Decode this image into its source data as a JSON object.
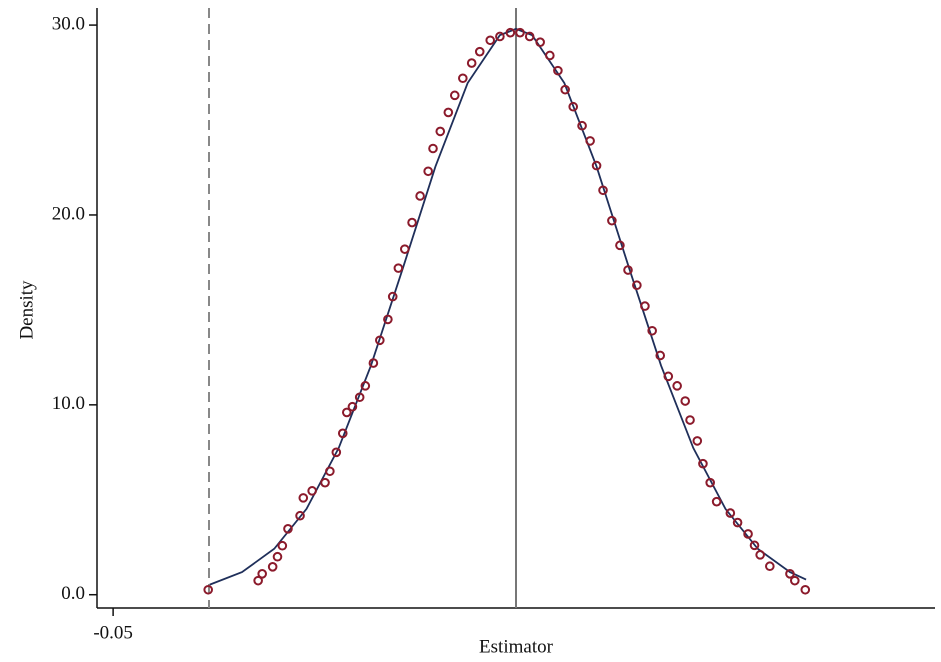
{
  "chart_data": {
    "type": "scatter",
    "xlabel": "Estimator",
    "ylabel": "Density",
    "xlim": [
      -0.052,
      0.052
    ],
    "ylim": [
      -0.7,
      30.9
    ],
    "xticks": [
      -0.05
    ],
    "yticks": [
      {
        "value": 0,
        "label": "0.0"
      },
      {
        "value": 10,
        "label": "10.0"
      },
      {
        "value": 20,
        "label": "20.0"
      },
      {
        "value": 30,
        "label": "30.0"
      }
    ],
    "points": {
      "color": "#8b1a2b",
      "x": [
        -0.0382,
        -0.032,
        -0.0315,
        -0.0302,
        -0.0296,
        -0.029,
        -0.0283,
        -0.0268,
        -0.0264,
        -0.0253,
        -0.0237,
        -0.0231,
        -0.0223,
        -0.0215,
        -0.021,
        -0.0203,
        -0.0194,
        -0.0187,
        -0.0177,
        -0.0169,
        -0.0159,
        -0.0153,
        -0.0146,
        -0.0138,
        -0.0129,
        -0.0119,
        -0.0109,
        -0.0103,
        -0.0094,
        -0.0084,
        -0.0076,
        -0.0066,
        -0.0055,
        -0.0045,
        -0.0032,
        -0.002,
        -0.0007,
        0.0005,
        0.0017,
        0.003,
        0.0042,
        0.0052,
        0.0061,
        0.0071,
        0.0082,
        0.0092,
        0.01,
        0.0108,
        0.0119,
        0.0129,
        0.0139,
        0.015,
        0.016,
        0.0169,
        0.0179,
        0.0189,
        0.02,
        0.021,
        0.0216,
        0.0225,
        0.0232,
        0.0241,
        0.0249,
        0.0266,
        0.0275,
        0.0288,
        0.0296,
        0.0303,
        0.0315,
        0.034,
        0.0346,
        0.0359
      ],
      "y": [
        0.26,
        0.74,
        1.1,
        1.47,
        2.0,
        2.58,
        3.47,
        4.16,
        5.1,
        5.47,
        5.9,
        6.5,
        7.5,
        8.5,
        9.6,
        9.9,
        10.4,
        11.0,
        12.2,
        13.4,
        14.5,
        15.7,
        17.2,
        18.2,
        19.6,
        21.0,
        22.3,
        23.5,
        24.4,
        25.4,
        26.3,
        27.2,
        28.0,
        28.6,
        29.2,
        29.4,
        29.6,
        29.6,
        29.4,
        29.1,
        28.4,
        27.6,
        26.6,
        25.7,
        24.7,
        23.9,
        22.6,
        21.3,
        19.7,
        18.4,
        17.1,
        16.3,
        15.2,
        13.9,
        12.6,
        11.5,
        11.0,
        10.2,
        9.2,
        8.1,
        6.9,
        5.9,
        4.9,
        4.3,
        3.8,
        3.2,
        2.6,
        2.1,
        1.5,
        1.1,
        0.74,
        0.26
      ]
    },
    "curve": {
      "color": "#1f2f5a",
      "x": [
        -0.038,
        -0.034,
        -0.03,
        -0.026,
        -0.022,
        -0.018,
        -0.014,
        -0.01,
        -0.006,
        -0.002,
        0,
        0.002,
        0.006,
        0.01,
        0.014,
        0.018,
        0.022,
        0.026,
        0.03,
        0.034,
        0.036
      ],
      "y": [
        0.53,
        1.19,
        2.42,
        4.52,
        7.73,
        12.07,
        17.25,
        22.55,
        26.95,
        29.47,
        29.8,
        29.47,
        26.95,
        22.55,
        17.25,
        12.07,
        7.73,
        4.52,
        2.42,
        1.19,
        0.8
      ]
    },
    "vlines": [
      {
        "x": 0,
        "style": "solid",
        "color": "#777777"
      },
      {
        "x": -0.0381,
        "style": "dashed",
        "color": "#888888"
      }
    ]
  }
}
